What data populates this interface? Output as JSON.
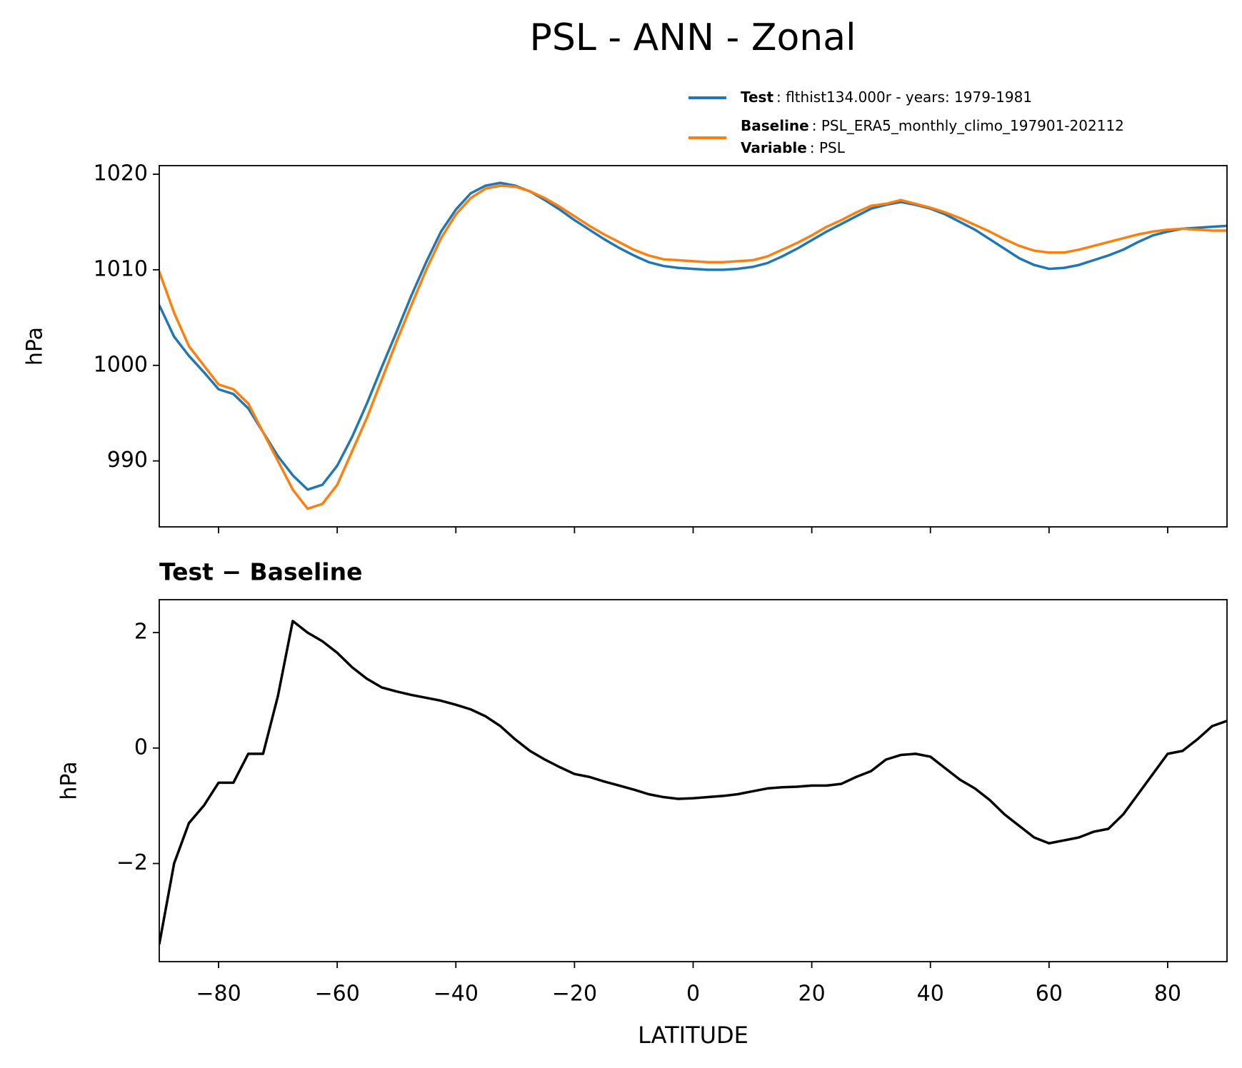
{
  "title": "PSL - ANN - Zonal",
  "chart_data": [
    {
      "type": "line",
      "ylabel": "hPa",
      "x": [
        -90,
        -87.5,
        -85,
        -82.5,
        -80,
        -77.5,
        -75,
        -72.5,
        -70,
        -67.5,
        -65,
        -62.5,
        -60,
        -57.5,
        -55,
        -52.5,
        -50,
        -47.5,
        -45,
        -42.5,
        -40,
        -37.5,
        -35,
        -32.5,
        -30,
        -27.5,
        -25,
        -22.5,
        -20,
        -17.5,
        -15,
        -12.5,
        -10,
        -7.5,
        -5,
        -2.5,
        0,
        2.5,
        5,
        7.5,
        10,
        12.5,
        15,
        17.5,
        20,
        22.5,
        25,
        27.5,
        30,
        32.5,
        35,
        37.5,
        40,
        42.5,
        45,
        47.5,
        50,
        52.5,
        55,
        57.5,
        60,
        62.5,
        65,
        67.5,
        70,
        72.5,
        75,
        77.5,
        80,
        82.5,
        85,
        87.5,
        90
      ],
      "series": [
        {
          "name": "Test",
          "description": ": flthist134.000r - years: 1979-1981",
          "color": "#1f77b4",
          "values": [
            1006.3,
            1003,
            1001,
            999.3,
            997.5,
            997,
            995.5,
            993,
            990.5,
            988.5,
            987,
            987.5,
            989.5,
            992.5,
            996,
            999.8,
            1003.5,
            1007.3,
            1010.8,
            1014,
            1016.3,
            1018,
            1018.8,
            1019.1,
            1018.8,
            1018.2,
            1017.3,
            1016.3,
            1015.2,
            1014.2,
            1013.2,
            1012.3,
            1011.5,
            1010.8,
            1010.4,
            1010.2,
            1010.1,
            1010,
            1010,
            1010.1,
            1010.3,
            1010.7,
            1011.4,
            1012.2,
            1013.1,
            1014,
            1014.8,
            1015.6,
            1016.4,
            1016.8,
            1017.1,
            1016.8,
            1016.4,
            1015.8,
            1015,
            1014.2,
            1013.2,
            1012.2,
            1011.2,
            1010.5,
            1010.1,
            1010.2,
            1010.5,
            1011,
            1011.5,
            1012.1,
            1012.9,
            1013.6,
            1014,
            1014.3,
            1014.4,
            1014.5,
            1014.6
          ]
        },
        {
          "name": "Baseline",
          "description": ": PSL_ERA5_monthly_climo_197901-202112",
          "color": "#ff7f0e",
          "values": [
            1009.8,
            1005.5,
            1002,
            1000,
            998,
            997.5,
            996,
            993,
            990,
            987,
            985,
            985.5,
            987.5,
            991,
            994.5,
            998.5,
            1002.5,
            1006.3,
            1010,
            1013.3,
            1015.8,
            1017.5,
            1018.5,
            1018.8,
            1018.7,
            1018.2,
            1017.5,
            1016.6,
            1015.6,
            1014.6,
            1013.7,
            1012.9,
            1012.1,
            1011.5,
            1011.1,
            1011,
            1010.9,
            1010.8,
            1010.8,
            1010.9,
            1011,
            1011.4,
            1012.1,
            1012.8,
            1013.6,
            1014.5,
            1015.2,
            1016,
            1016.7,
            1016.9,
            1017.3,
            1016.9,
            1016.5,
            1016,
            1015.4,
            1014.7,
            1014,
            1013.2,
            1012.5,
            1012,
            1011.8,
            1011.8,
            1012.1,
            1012.5,
            1012.9,
            1013.3,
            1013.7,
            1014,
            1014.2,
            1014.3,
            1014.2,
            1014.1,
            1014.1
          ]
        }
      ],
      "legend_extra": {
        "name": "Variable",
        "description": ": PSL"
      },
      "xlim": [
        -90,
        90
      ],
      "xticks": [
        -80,
        -60,
        -40,
        -20,
        0,
        20,
        40,
        60,
        80
      ],
      "show_xtick_labels": false,
      "ylim": [
        983.1,
        1020.9
      ],
      "yticks": [
        990,
        1000,
        1010,
        1020
      ]
    },
    {
      "type": "line",
      "title": "Test − Baseline",
      "xlabel": "LATITUDE",
      "ylabel": "hPa",
      "x": [
        -90,
        -87.5,
        -85,
        -82.5,
        -80,
        -77.5,
        -75,
        -72.5,
        -70,
        -67.5,
        -65,
        -62.5,
        -60,
        -57.5,
        -55,
        -52.5,
        -50,
        -47.5,
        -45,
        -42.5,
        -40,
        -37.5,
        -35,
        -32.5,
        -30,
        -27.5,
        -25,
        -22.5,
        -20,
        -17.5,
        -15,
        -12.5,
        -10,
        -7.5,
        -5,
        -2.5,
        0,
        2.5,
        5,
        7.5,
        10,
        12.5,
        15,
        17.5,
        20,
        22.5,
        25,
        27.5,
        30,
        32.5,
        35,
        37.5,
        40,
        42.5,
        45,
        47.5,
        50,
        52.5,
        55,
        57.5,
        60,
        62.5,
        65,
        67.5,
        70,
        72.5,
        75,
        77.5,
        80,
        82.5,
        85,
        87.5,
        90
      ],
      "series": [
        {
          "color": "#000000",
          "values": [
            -3.4,
            -2.0,
            -1.3,
            -1.0,
            -0.6,
            -0.6,
            -0.1,
            -0.1,
            0.9,
            2.2,
            2.0,
            1.85,
            1.65,
            1.4,
            1.2,
            1.05,
            0.98,
            0.92,
            0.87,
            0.82,
            0.75,
            0.67,
            0.55,
            0.38,
            0.15,
            -0.05,
            -0.2,
            -0.33,
            -0.45,
            -0.5,
            -0.58,
            -0.65,
            -0.72,
            -0.8,
            -0.85,
            -0.88,
            -0.87,
            -0.85,
            -0.83,
            -0.8,
            -0.75,
            -0.7,
            -0.68,
            -0.67,
            -0.65,
            -0.65,
            -0.62,
            -0.5,
            -0.4,
            -0.2,
            -0.12,
            -0.1,
            -0.15,
            -0.35,
            -0.55,
            -0.7,
            -0.9,
            -1.15,
            -1.35,
            -1.55,
            -1.65,
            -1.6,
            -1.55,
            -1.45,
            -1.4,
            -1.15,
            -0.8,
            -0.45,
            -0.1,
            -0.05,
            0.15,
            0.38,
            0.47
          ]
        }
      ],
      "xlim": [
        -90,
        90
      ],
      "xticks": [
        {
          "value": -80,
          "label": "−80"
        },
        {
          "value": -60,
          "label": "−60"
        },
        {
          "value": -40,
          "label": "−40"
        },
        {
          "value": -20,
          "label": "−20"
        },
        0,
        20,
        40,
        60,
        80
      ],
      "show_xtick_labels": true,
      "ylim": [
        -3.7,
        2.57
      ],
      "yticks": [
        {
          "value": -2,
          "label": "−2"
        },
        0,
        2
      ]
    }
  ]
}
